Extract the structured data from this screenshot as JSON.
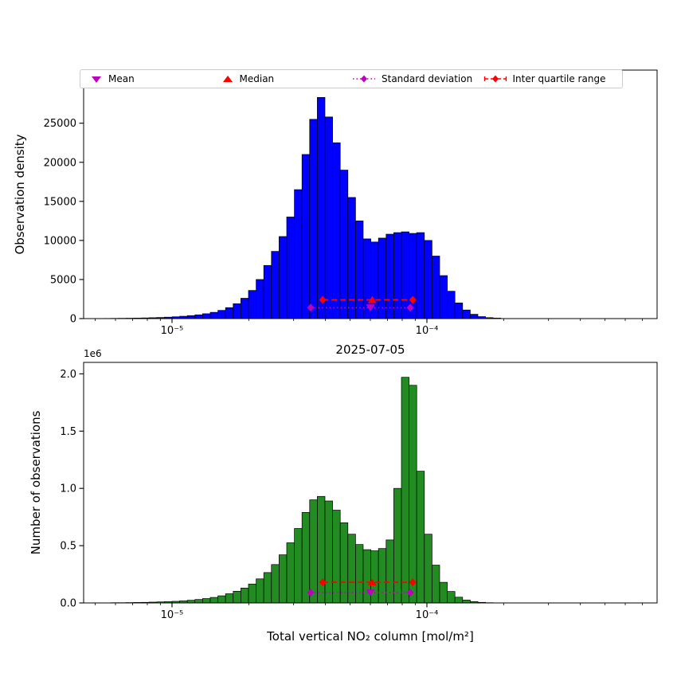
{
  "colors": {
    "blue": "#0000ff",
    "green": "#228b22",
    "magenta": "#bf00bf",
    "red": "#ff0000",
    "axis": "#000000",
    "legend_border": "#cccccc"
  },
  "legend": {
    "items": [
      {
        "label": "Mean",
        "marker": "triangle-down",
        "color": "#bf00bf",
        "linestyle": "none"
      },
      {
        "label": "Median",
        "marker": "triangle-up",
        "color": "#ff0000",
        "linestyle": "none"
      },
      {
        "label": "Standard deviation",
        "marker": "diamond",
        "color": "#bf00bf",
        "linestyle": "dotted"
      },
      {
        "label": "Inter quartile range",
        "marker": "diamond",
        "color": "#ff0000",
        "linestyle": "dashed"
      }
    ]
  },
  "chart_data": [
    {
      "type": "bar",
      "id": "density",
      "title": "",
      "xlabel": "",
      "ylabel": "Observation density",
      "xscale": "log",
      "xlim": [
        4.5e-06,
        0.0008
      ],
      "ylim": [
        0,
        31800
      ],
      "bar_color": "#0000ff",
      "bar_edge_color": "#000000",
      "xticks": [
        {
          "value": 1e-05,
          "label": "10⁻⁵"
        },
        {
          "value": 0.0001,
          "label": "10⁻⁴"
        }
      ],
      "yticks": [
        {
          "value": 0,
          "label": "0"
        },
        {
          "value": 5000,
          "label": "5000"
        },
        {
          "value": 10000,
          "label": "10000"
        },
        {
          "value": 15000,
          "label": "15000"
        },
        {
          "value": 20000,
          "label": "20000"
        },
        {
          "value": 25000,
          "label": "25000"
        }
      ],
      "bin_log10_width": 0.03,
      "bin_centers_log10": [
        -5.285,
        -5.255,
        -5.225,
        -5.195,
        -5.165,
        -5.135,
        -5.105,
        -5.075,
        -5.045,
        -5.015,
        -4.985,
        -4.955,
        -4.925,
        -4.895,
        -4.865,
        -4.835,
        -4.805,
        -4.775,
        -4.745,
        -4.715,
        -4.685,
        -4.655,
        -4.625,
        -4.595,
        -4.565,
        -4.535,
        -4.505,
        -4.475,
        -4.445,
        -4.415,
        -4.385,
        -4.355,
        -4.325,
        -4.295,
        -4.265,
        -4.235,
        -4.205,
        -4.175,
        -4.145,
        -4.115,
        -4.085,
        -4.055,
        -4.025,
        -3.995,
        -3.965,
        -3.935,
        -3.905,
        -3.875,
        -3.845,
        -3.815,
        -3.785,
        -3.755,
        -3.725
      ],
      "values": [
        15,
        20,
        28,
        38,
        50,
        65,
        85,
        110,
        140,
        180,
        230,
        300,
        380,
        480,
        620,
        800,
        1050,
        1400,
        1900,
        2600,
        3600,
        5000,
        6800,
        8600,
        10500,
        13000,
        16500,
        21000,
        25500,
        28300,
        25800,
        22500,
        19000,
        15500,
        12500,
        10200,
        9800,
        10300,
        10800,
        11000,
        11100,
        10900,
        11000,
        10000,
        8000,
        5500,
        3500,
        2000,
        1100,
        550,
        250,
        120,
        60
      ],
      "stats_markers": {
        "mean": {
          "x": 6e-05,
          "y": 1400
        },
        "median": {
          "x": 6.1e-05,
          "y": 2400
        },
        "std_range": {
          "x1": 3.5e-05,
          "x2": 8.6e-05,
          "y": 1400
        },
        "iqr_range": {
          "x1": 3.9e-05,
          "x2": 8.8e-05,
          "y": 2400
        }
      }
    },
    {
      "type": "bar",
      "id": "counts",
      "title": "2025-07-05",
      "xlabel": "Total vertical NO₂ column [mol/m²]",
      "ylabel": "Number of observations",
      "offset_label": "1e6",
      "xscale": "log",
      "xlim": [
        4.5e-06,
        0.0008
      ],
      "ylim": [
        0,
        2100000
      ],
      "bar_color": "#228b22",
      "bar_edge_color": "#000000",
      "xticks": [
        {
          "value": 1e-05,
          "label": "10⁻⁵"
        },
        {
          "value": 0.0001,
          "label": "10⁻⁴"
        }
      ],
      "yticks": [
        {
          "value": 0,
          "label": "0.0"
        },
        {
          "value": 500000,
          "label": "0.5"
        },
        {
          "value": 1000000,
          "label": "1.0"
        },
        {
          "value": 1500000,
          "label": "1.5"
        },
        {
          "value": 2000000,
          "label": "2.0"
        }
      ],
      "bin_log10_width": 0.03,
      "bin_centers_log10": [
        -5.285,
        -5.255,
        -5.225,
        -5.195,
        -5.165,
        -5.135,
        -5.105,
        -5.075,
        -5.045,
        -5.015,
        -4.985,
        -4.955,
        -4.925,
        -4.895,
        -4.865,
        -4.835,
        -4.805,
        -4.775,
        -4.745,
        -4.715,
        -4.685,
        -4.655,
        -4.625,
        -4.595,
        -4.565,
        -4.535,
        -4.505,
        -4.475,
        -4.445,
        -4.415,
        -4.385,
        -4.355,
        -4.325,
        -4.295,
        -4.265,
        -4.235,
        -4.205,
        -4.175,
        -4.145,
        -4.115,
        -4.085,
        -4.055,
        -4.025,
        -3.995,
        -3.965,
        -3.935,
        -3.905,
        -3.875,
        -3.845,
        -3.815,
        -3.785,
        -3.755,
        -3.725
      ],
      "values": [
        1000,
        1000,
        2000,
        2000,
        3000,
        4000,
        5000,
        7000,
        9000,
        11000,
        14000,
        18000,
        23000,
        30000,
        38000,
        48000,
        62000,
        80000,
        102000,
        130000,
        165000,
        210000,
        265000,
        335000,
        420000,
        525000,
        650000,
        790000,
        900000,
        930000,
        890000,
        810000,
        700000,
        600000,
        510000,
        465000,
        455000,
        475000,
        550000,
        1000000,
        1970000,
        1900000,
        1150000,
        600000,
        330000,
        180000,
        100000,
        50000,
        25000,
        12000,
        5000,
        2000,
        1000
      ],
      "stats_markers": {
        "mean": {
          "x": 6e-05,
          "y": 90000
        },
        "median": {
          "x": 6.1e-05,
          "y": 180000
        },
        "std_range": {
          "x1": 3.5e-05,
          "x2": 8.6e-05,
          "y": 90000
        },
        "iqr_range": {
          "x1": 3.9e-05,
          "x2": 8.8e-05,
          "y": 180000
        }
      }
    }
  ]
}
